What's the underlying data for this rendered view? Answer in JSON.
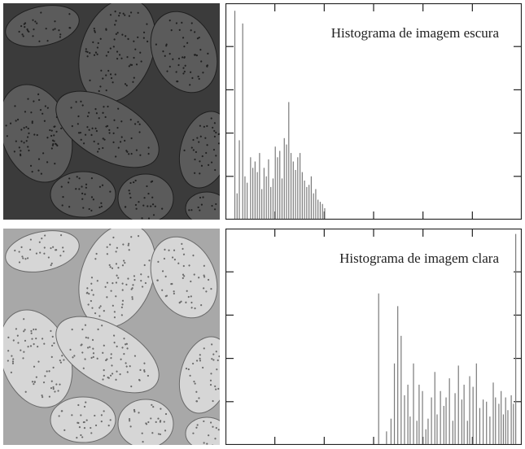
{
  "panels": [
    {
      "image": "pollen-grains-dark-photo",
      "tone": "dark",
      "fill": "#3b3b3b",
      "grain": "#5b5b5b",
      "dots": "#1f1f1f"
    },
    {
      "image": "pollen-grains-light-photo",
      "tone": "light",
      "fill": "#a8a8a8",
      "grain": "#d6d6d6",
      "dots": "#6a6a6a"
    }
  ],
  "chart_data": [
    {
      "type": "bar",
      "title": "Histograma de imagem escura",
      "xlabel": "",
      "ylabel": "",
      "xlim": [
        0,
        255
      ],
      "ylim": [
        0,
        1
      ],
      "x_ticks": 5,
      "y_ticks": 4,
      "bar_color": "#7a7a7a",
      "x": [
        4,
        6,
        8,
        11,
        13,
        15,
        18,
        20,
        22,
        24,
        26,
        28,
        30,
        32,
        34,
        36,
        38,
        40,
        42,
        44,
        46,
        48,
        50,
        52,
        54,
        56,
        58,
        60,
        62,
        64,
        66,
        68,
        70,
        72,
        74,
        76,
        78,
        80,
        82,
        84
      ],
      "values": [
        0.98,
        0.12,
        0.37,
        0.92,
        0.2,
        0.17,
        0.29,
        0.24,
        0.27,
        0.22,
        0.31,
        0.14,
        0.24,
        0.2,
        0.28,
        0.15,
        0.19,
        0.34,
        0.29,
        0.32,
        0.19,
        0.38,
        0.35,
        0.55,
        0.31,
        0.27,
        0.23,
        0.29,
        0.31,
        0.22,
        0.18,
        0.15,
        0.16,
        0.2,
        0.12,
        0.14,
        0.09,
        0.08,
        0.07,
        0.05
      ]
    },
    {
      "type": "bar",
      "title": "Histograma de imagem clara",
      "xlabel": "",
      "ylabel": "",
      "xlim": [
        0,
        255
      ],
      "ylim": [
        0,
        1
      ],
      "x_ticks": 5,
      "y_ticks": 4,
      "bar_color": "#7a7a7a",
      "x": [
        132,
        139,
        143,
        146,
        149,
        152,
        155,
        158,
        160,
        163,
        166,
        168,
        171,
        174,
        176,
        179,
        182,
        184,
        187,
        190,
        192,
        195,
        198,
        200,
        203,
        206,
        208,
        211,
        213,
        216,
        219,
        222,
        225,
        228,
        231,
        234,
        236,
        239,
        241,
        243,
        245,
        247,
        250,
        252,
        254
      ],
      "values": [
        0.71,
        0.06,
        0.12,
        0.38,
        0.65,
        0.51,
        0.23,
        0.28,
        0.13,
        0.38,
        0.11,
        0.28,
        0.25,
        0.07,
        0.12,
        0.22,
        0.34,
        0.14,
        0.25,
        0.18,
        0.22,
        0.31,
        0.11,
        0.24,
        0.37,
        0.21,
        0.28,
        0.11,
        0.32,
        0.27,
        0.38,
        0.17,
        0.21,
        0.2,
        0.13,
        0.29,
        0.22,
        0.19,
        0.25,
        0.14,
        0.22,
        0.16,
        0.23,
        0.19,
        0.99
      ]
    }
  ]
}
